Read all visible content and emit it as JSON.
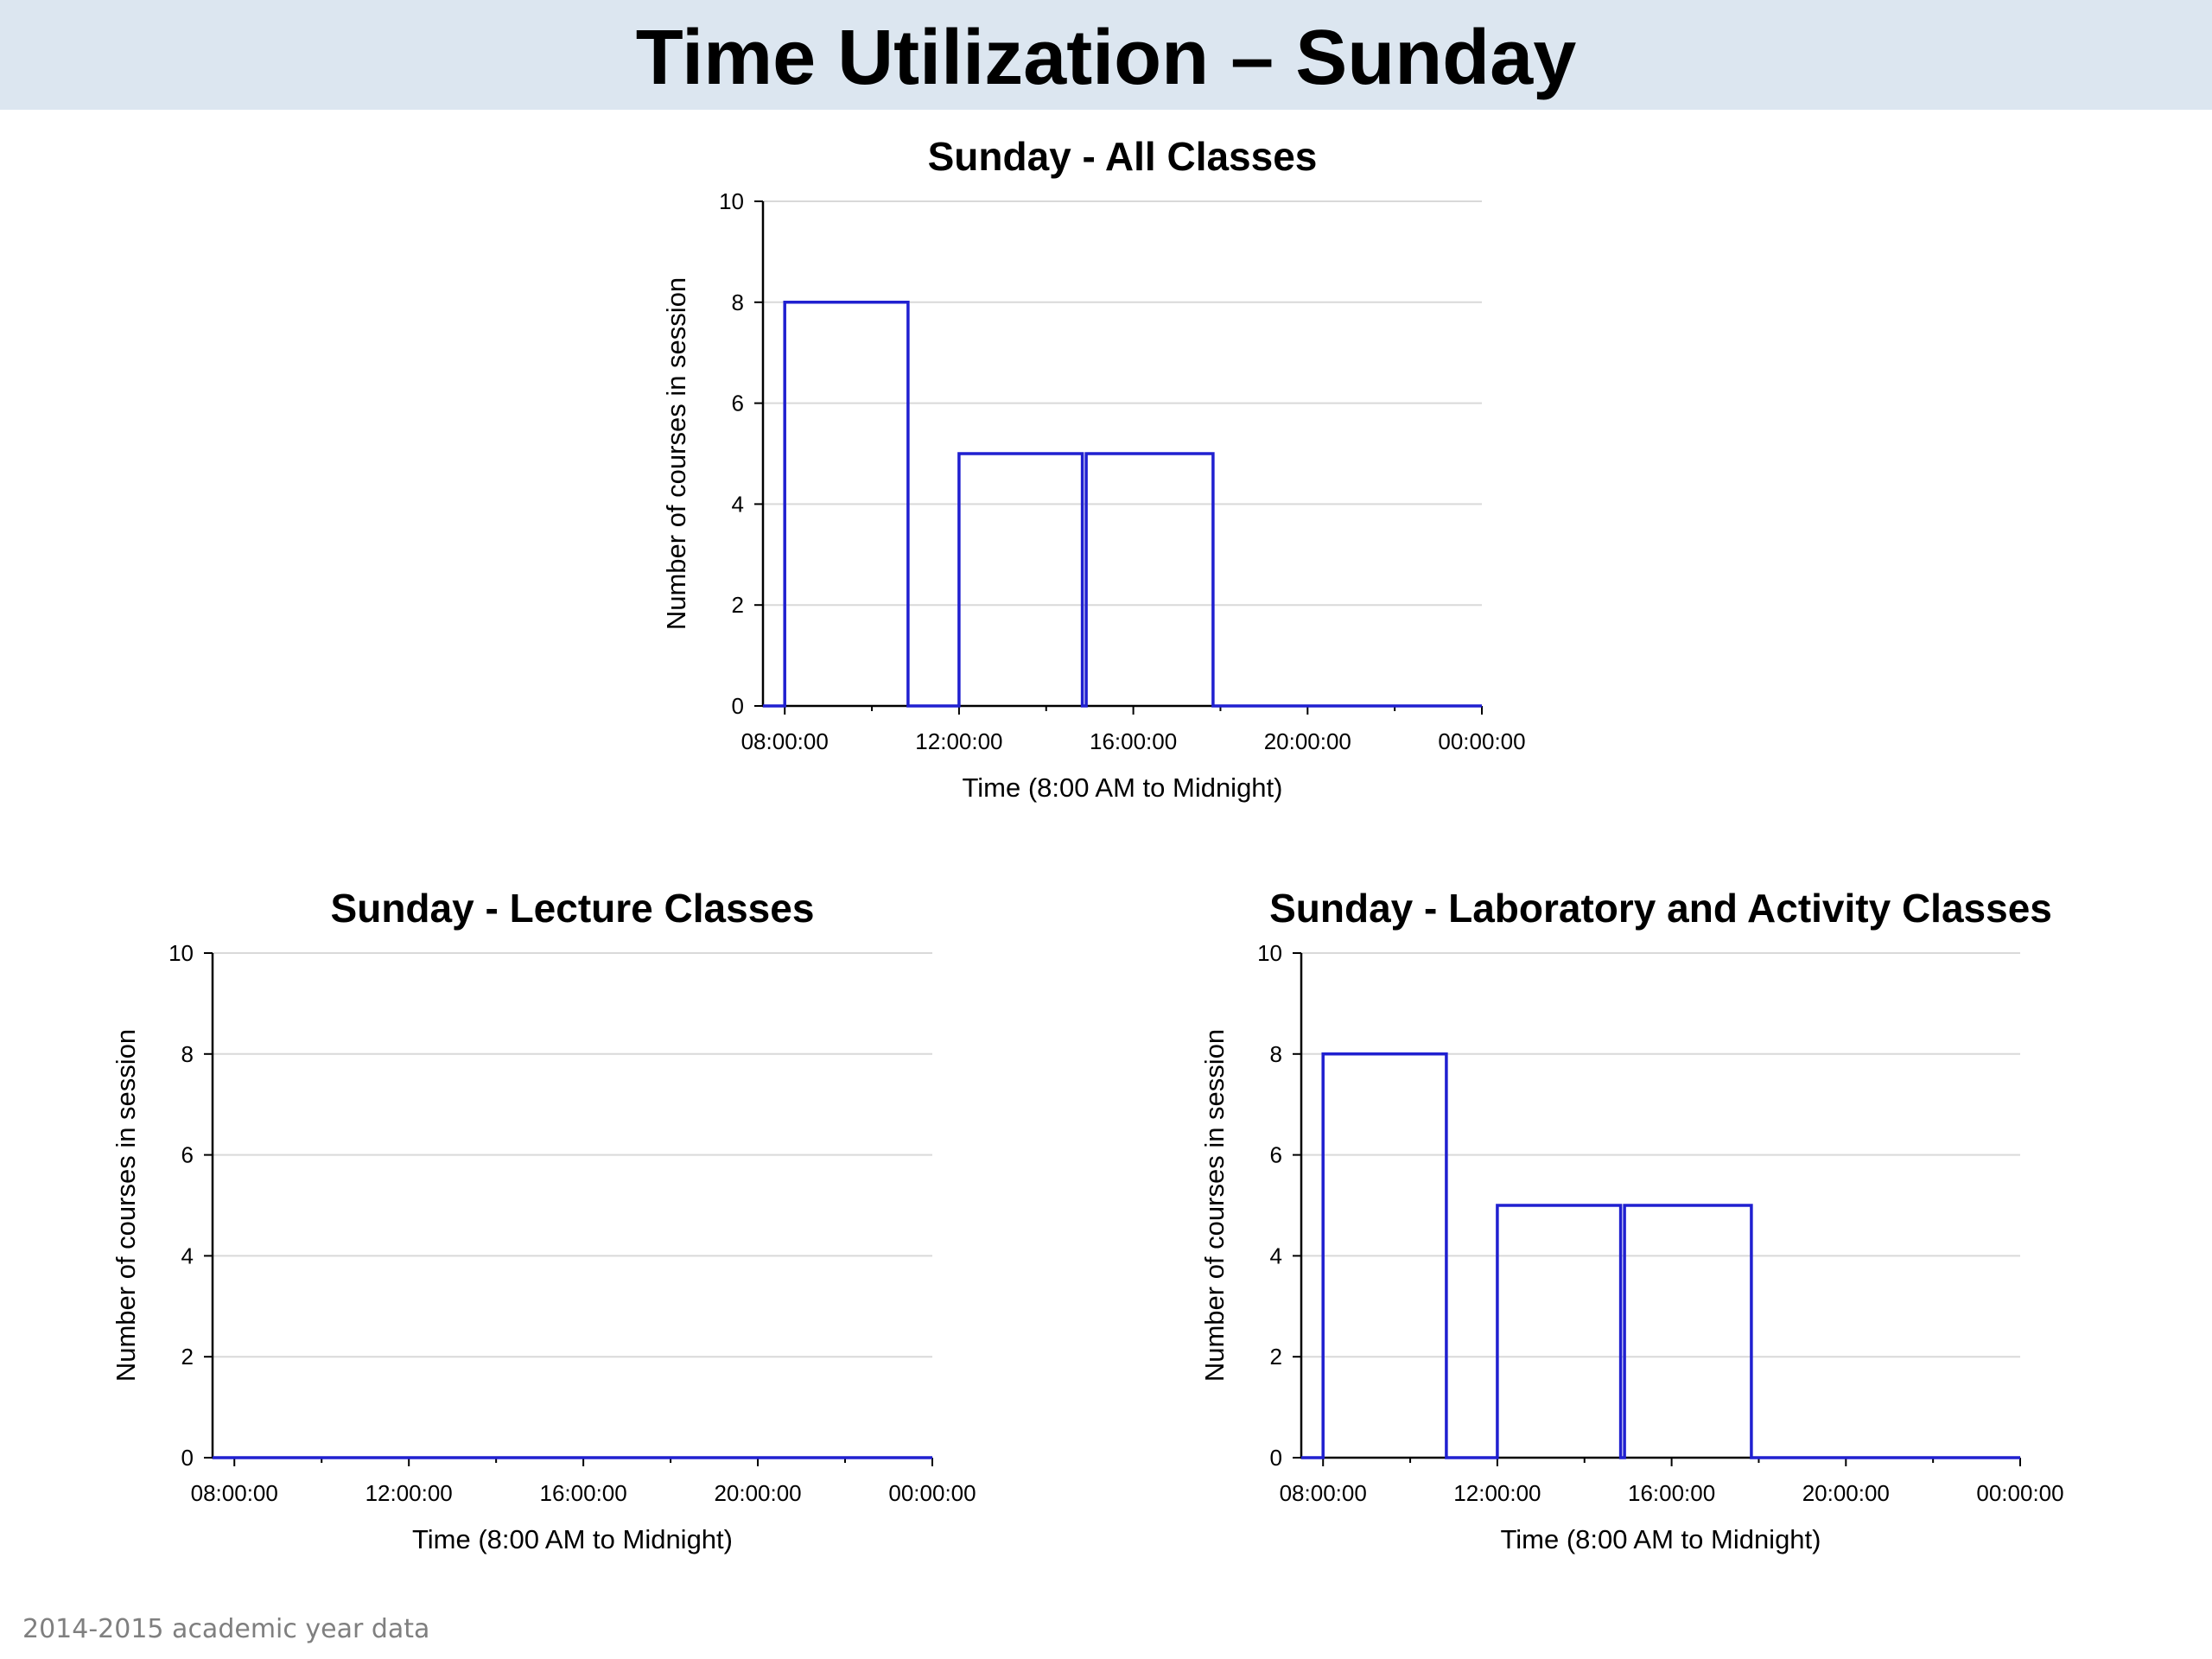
{
  "slide": {
    "title": "Time Utilization – Sunday",
    "footer": "2014-2015 academic year data"
  },
  "colors": {
    "title_bar": "#dce6f0",
    "series": "#2020d0"
  },
  "chart_data": [
    {
      "id": "all",
      "type": "line",
      "title": "Sunday - All Classes",
      "xlabel": "Time (8:00 AM to Midnight)",
      "ylabel": "Number of courses in session",
      "xlim": [
        7.5,
        24
      ],
      "ylim": [
        0,
        10
      ],
      "yticks": [
        0,
        2,
        4,
        6,
        8,
        10
      ],
      "xticks": [
        {
          "value": 8,
          "label": "08:00:00"
        },
        {
          "value": 12,
          "label": "12:00:00"
        },
        {
          "value": 16,
          "label": "16:00:00"
        },
        {
          "value": 20,
          "label": "20:00:00"
        },
        {
          "value": 24,
          "label": "00:00:00"
        }
      ],
      "grid": true,
      "series": [
        {
          "x": [
            7.5,
            8.0,
            8.0,
            10.83,
            10.83,
            12.0,
            12.0,
            14.83,
            14.83,
            14.92,
            14.92,
            17.83,
            17.83,
            24.0
          ],
          "y": [
            0,
            0,
            8,
            8,
            0,
            0,
            5,
            5,
            0,
            0,
            5,
            5,
            0,
            0
          ]
        }
      ]
    },
    {
      "id": "lecture",
      "type": "line",
      "title": "Sunday - Lecture Classes",
      "xlabel": "Time (8:00 AM to Midnight)",
      "ylabel": "Number of courses in session",
      "xlim": [
        7.5,
        24
      ],
      "ylim": [
        0,
        10
      ],
      "yticks": [
        0,
        2,
        4,
        6,
        8,
        10
      ],
      "xticks": [
        {
          "value": 8,
          "label": "08:00:00"
        },
        {
          "value": 12,
          "label": "12:00:00"
        },
        {
          "value": 16,
          "label": "16:00:00"
        },
        {
          "value": 20,
          "label": "20:00:00"
        },
        {
          "value": 24,
          "label": "00:00:00"
        }
      ],
      "grid": true,
      "series": [
        {
          "x": [
            7.5,
            24.0
          ],
          "y": [
            0,
            0
          ]
        }
      ]
    },
    {
      "id": "lab",
      "type": "line",
      "title": "Sunday - Laboratory and Activity Classes",
      "xlabel": "Time (8:00 AM to Midnight)",
      "ylabel": "Number of courses in session",
      "xlim": [
        7.5,
        24
      ],
      "ylim": [
        0,
        10
      ],
      "yticks": [
        0,
        2,
        4,
        6,
        8,
        10
      ],
      "xticks": [
        {
          "value": 8,
          "label": "08:00:00"
        },
        {
          "value": 12,
          "label": "12:00:00"
        },
        {
          "value": 16,
          "label": "16:00:00"
        },
        {
          "value": 20,
          "label": "20:00:00"
        },
        {
          "value": 24,
          "label": "00:00:00"
        }
      ],
      "grid": true,
      "series": [
        {
          "x": [
            7.5,
            8.0,
            8.0,
            10.83,
            10.83,
            12.0,
            12.0,
            14.83,
            14.83,
            14.92,
            14.92,
            17.83,
            17.83,
            24.0
          ],
          "y": [
            0,
            0,
            8,
            8,
            0,
            0,
            5,
            5,
            0,
            0,
            5,
            5,
            0,
            0
          ]
        }
      ]
    }
  ]
}
